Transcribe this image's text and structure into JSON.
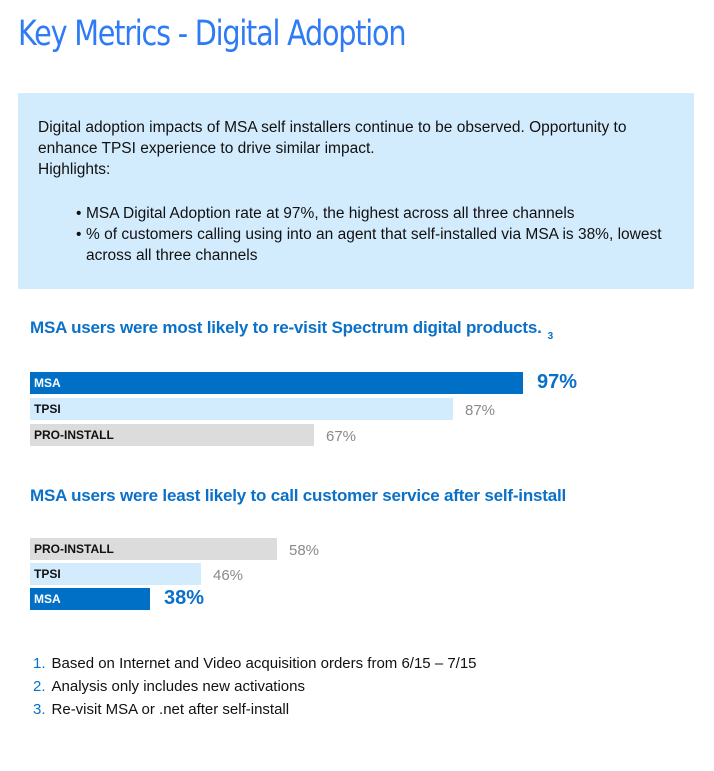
{
  "page": {
    "title": "Key Metrics - Digital Adoption"
  },
  "summary": {
    "intro": "Digital adoption impacts of MSA self installers continue to be observed. Opportunity to enhance TPSI experience to drive similar impact.",
    "highlights_label": "Highlights:",
    "bullets": [
      "MSA Digital Adoption rate at 97%, the highest across all three channels",
      "% of  customers calling using into an agent that self-installed via MSA is 38%, lowest across all three channels"
    ]
  },
  "colors": {
    "accent": "#0b70c8",
    "title_blue": "#2f7bf5",
    "msa": "#0070c6",
    "tpsi": "#d3ecfd",
    "pro_install": "#dcdcdc",
    "info_bg": "#d3ecfd",
    "value_gray": "#8a8a8a"
  },
  "chart_data": [
    {
      "type": "bar",
      "orientation": "horizontal",
      "title": "MSA users were most likely to re-visit Spectrum digital products.",
      "footnote_ref": "3",
      "categories": [
        "MSA",
        "TPSI",
        "PRO-INSTALL"
      ],
      "values": [
        97,
        87,
        67
      ],
      "value_labels": [
        "97%",
        "87%",
        "67%"
      ],
      "highlight": "MSA",
      "unit": "%",
      "xlim": [
        27,
        97
      ],
      "grid": false,
      "legend": "none",
      "xlabel": "",
      "ylabel": ""
    },
    {
      "type": "bar",
      "orientation": "horizontal",
      "title": "MSA users were least likely to call customer service after self-install",
      "footnote_ref": "",
      "categories": [
        "PRO-INSTALL",
        "TPSI",
        "MSA"
      ],
      "values": [
        58,
        46,
        38
      ],
      "value_labels": [
        "58%",
        "46%",
        "38%"
      ],
      "highlight": "MSA",
      "unit": "%",
      "xlim": [
        20,
        58
      ],
      "grid": false,
      "legend": "none",
      "xlabel": "",
      "ylabel": ""
    }
  ],
  "footnotes": [
    {
      "num": "1.",
      "text": "Based on Internet and Video acquisition orders from 6/15 – 7/15"
    },
    {
      "num": "2.",
      "text": "Analysis only includes new activations"
    },
    {
      "num": "3.",
      "text": "Re-visit MSA or .net after self-install"
    }
  ]
}
